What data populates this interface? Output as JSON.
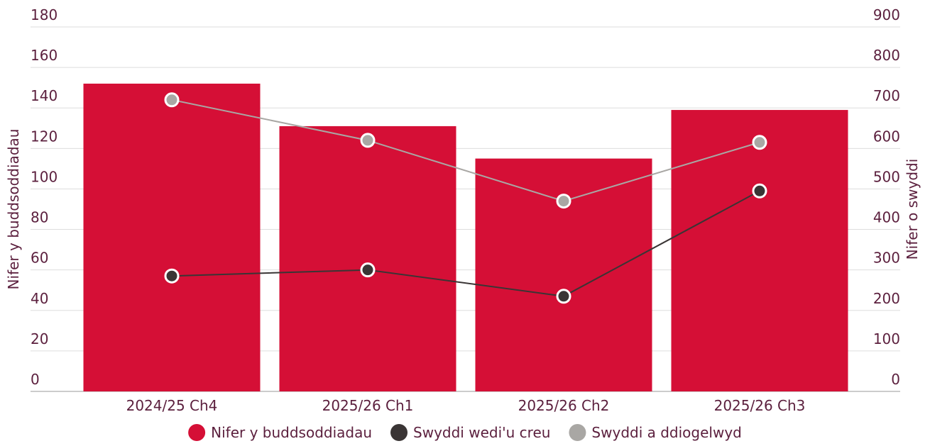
{
  "chart_data": {
    "type": "bar",
    "categories": [
      "2024/25 Ch4",
      "2025/26 Ch1",
      "2025/26 Ch2",
      "2025/26 Ch3"
    ],
    "y_label": "Nifer y buddsoddiadau",
    "y2_label": "Nifer o swyddi",
    "ylim": [
      0,
      180
    ],
    "yticks": [
      0,
      20,
      40,
      60,
      80,
      100,
      120,
      140,
      160,
      180
    ],
    "y2lim": [
      0,
      900
    ],
    "y2ticks": [
      0,
      100,
      200,
      300,
      400,
      500,
      600,
      700,
      800,
      900
    ],
    "grid": true,
    "legend": "bottom",
    "series": [
      {
        "name": "Nifer y buddsoddiadau",
        "type": "bar",
        "color": "#d50f36",
        "values": [
          152,
          131,
          115,
          139
        ]
      },
      {
        "name": "Swyddi wedi'u creu",
        "type": "line",
        "axis": "y2",
        "color": "#3a3535",
        "values": [
          285,
          300,
          235,
          495
        ]
      },
      {
        "name": "Swyddi a ddiogelwyd",
        "type": "line",
        "axis": "y2",
        "color": "#a9a7a4",
        "values": [
          720,
          620,
          470,
          615
        ]
      }
    ]
  }
}
